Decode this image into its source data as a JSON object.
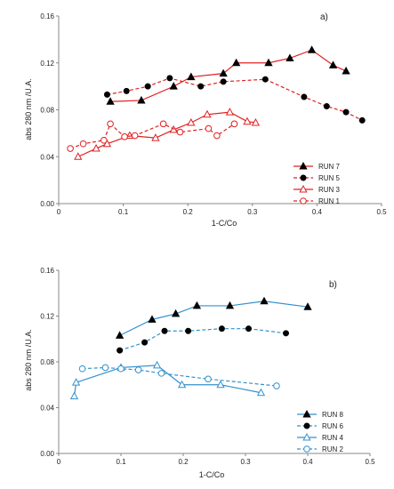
{
  "chart_data": [
    {
      "type": "line",
      "panel_label": "a)",
      "xlabel": "1-C/Co",
      "ylabel": "abs 280 nm /U.A.",
      "xlim": [
        0,
        0.5
      ],
      "ylim": [
        0,
        0.16
      ],
      "xticks": [
        "0",
        "0.1",
        "0.2",
        "0.3",
        "0.4",
        "0.5"
      ],
      "yticks": [
        "0.00",
        "0.04",
        "0.08",
        "0.12",
        "0.16"
      ],
      "grid": false,
      "legend_position": "right",
      "series": [
        {
          "name": "RUN 7",
          "color": "#e02020",
          "dash": "solid",
          "marker": "filled-triangle",
          "points": [
            [
              0.08,
              0.087
            ],
            [
              0.128,
              0.088
            ],
            [
              0.178,
              0.1
            ],
            [
              0.205,
              0.108
            ],
            [
              0.255,
              0.111
            ],
            [
              0.275,
              0.12
            ],
            [
              0.325,
              0.12
            ],
            [
              0.358,
              0.124
            ],
            [
              0.392,
              0.131
            ],
            [
              0.425,
              0.118
            ],
            [
              0.445,
              0.113
            ]
          ]
        },
        {
          "name": "RUN 5",
          "color": "#e02020",
          "dash": "dashed",
          "marker": "filled-circle",
          "points": [
            [
              0.075,
              0.093
            ],
            [
              0.105,
              0.096
            ],
            [
              0.138,
              0.1
            ],
            [
              0.172,
              0.107
            ],
            [
              0.22,
              0.1
            ],
            [
              0.255,
              0.104
            ],
            [
              0.32,
              0.106
            ],
            [
              0.38,
              0.091
            ],
            [
              0.415,
              0.083
            ],
            [
              0.445,
              0.078
            ],
            [
              0.47,
              0.071
            ]
          ]
        },
        {
          "name": "RUN 3",
          "color": "#e02020",
          "dash": "solid",
          "marker": "open-triangle",
          "points": [
            [
              0.03,
              0.04
            ],
            [
              0.058,
              0.047
            ],
            [
              0.075,
              0.051
            ],
            [
              0.11,
              0.058
            ],
            [
              0.15,
              0.056
            ],
            [
              0.178,
              0.063
            ],
            [
              0.205,
              0.069
            ],
            [
              0.23,
              0.076
            ],
            [
              0.265,
              0.078
            ],
            [
              0.292,
              0.07
            ],
            [
              0.305,
              0.069
            ]
          ]
        },
        {
          "name": "RUN 1",
          "color": "#e02020",
          "dash": "dashed",
          "marker": "open-circle",
          "points": [
            [
              0.018,
              0.047
            ],
            [
              0.038,
              0.051
            ],
            [
              0.07,
              0.054
            ],
            [
              0.08,
              0.068
            ],
            [
              0.102,
              0.057
            ],
            [
              0.118,
              0.058
            ],
            [
              0.162,
              0.068
            ],
            [
              0.188,
              0.061
            ],
            [
              0.232,
              0.064
            ],
            [
              0.245,
              0.058
            ],
            [
              0.272,
              0.068
            ]
          ]
        }
      ]
    },
    {
      "type": "line",
      "panel_label": "b)",
      "xlabel": "1-C/Co",
      "ylabel": "abs 280 nm /U.A.",
      "xlim": [
        0,
        0.5
      ],
      "ylim": [
        0,
        0.16
      ],
      "xticks": [
        "0",
        "0.1",
        "0.2",
        "0.3",
        "0.4",
        "0.5"
      ],
      "yticks": [
        "0.00",
        "0.04",
        "0.08",
        "0.12",
        "0.16"
      ],
      "grid": false,
      "legend_position": "right",
      "series": [
        {
          "name": "RUN 8",
          "color": "#3391cc",
          "dash": "solid",
          "marker": "filled-triangle",
          "points": [
            [
              0.098,
              0.103
            ],
            [
              0.15,
              0.117
            ],
            [
              0.188,
              0.122
            ],
            [
              0.222,
              0.129
            ],
            [
              0.275,
              0.129
            ],
            [
              0.33,
              0.133
            ],
            [
              0.4,
              0.128
            ]
          ]
        },
        {
          "name": "RUN 6",
          "color": "#3391cc",
          "dash": "dashed",
          "marker": "filled-circle",
          "points": [
            [
              0.098,
              0.09
            ],
            [
              0.138,
              0.097
            ],
            [
              0.17,
              0.107
            ],
            [
              0.208,
              0.107
            ],
            [
              0.262,
              0.109
            ],
            [
              0.305,
              0.109
            ],
            [
              0.365,
              0.105
            ]
          ]
        },
        {
          "name": "RUN 4",
          "color": "#3391cc",
          "dash": "solid",
          "marker": "open-triangle",
          "points": [
            [
              0.025,
              0.05
            ],
            [
              0.028,
              0.062
            ],
            [
              0.1,
              0.075
            ],
            [
              0.158,
              0.077
            ],
            [
              0.198,
              0.06
            ],
            [
              0.26,
              0.06
            ],
            [
              0.325,
              0.053
            ]
          ]
        },
        {
          "name": "RUN 2",
          "color": "#3391cc",
          "dash": "dashed",
          "marker": "open-circle",
          "points": [
            [
              0.038,
              0.074
            ],
            [
              0.075,
              0.075
            ],
            [
              0.1,
              0.074
            ],
            [
              0.128,
              0.073
            ],
            [
              0.165,
              0.07
            ],
            [
              0.24,
              0.065
            ],
            [
              0.35,
              0.059
            ]
          ]
        }
      ]
    }
  ]
}
